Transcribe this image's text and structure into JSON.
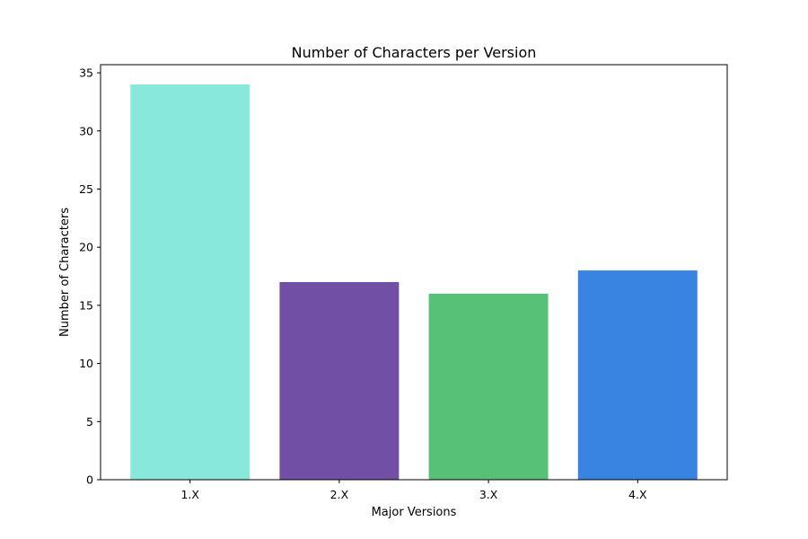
{
  "chart_data": {
    "type": "bar",
    "title": "Number of Characters per Version",
    "xlabel": "Major Versions",
    "ylabel": "Number of Characters",
    "categories": [
      "1.X",
      "2.X",
      "3.X",
      "4.X"
    ],
    "values": [
      34,
      17,
      16,
      18
    ],
    "colors": [
      "#87e8db",
      "#714fa5",
      "#57c277",
      "#3984e0"
    ],
    "ylim": [
      0,
      35.7
    ],
    "yticks": [
      0,
      5,
      10,
      15,
      20,
      25,
      30,
      35
    ],
    "grid": false,
    "legend": "none"
  }
}
